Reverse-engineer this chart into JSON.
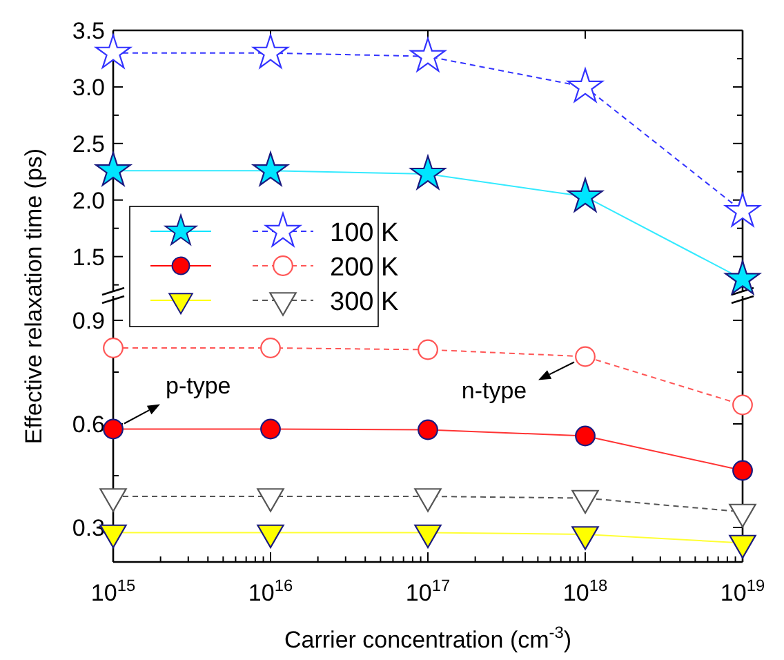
{
  "chart_data": [
    {
      "type": "line",
      "ylabel": "Effective relaxation time (ps)",
      "legend": "bottom left",
      "tick_labels": "y",
      "marker": "star",
      "xlim": [
        1000000000000000.0,
        1e+19
      ],
      "log": "x",
      "ylim": [
        1.15,
        3.5
      ],
      "xticks": [
        {
          "value": 1000000000000000.0,
          "label": null
        },
        {
          "value": 1e+16,
          "label": null
        },
        {
          "value": 1e+17,
          "label": null
        },
        {
          "value": 1e+18,
          "label": null
        },
        {
          "value": 1e+19,
          "label": null
        }
      ],
      "yticks": [
        {
          "value": 1.25,
          "label": null
        },
        1.5,
        {
          "value": 1.75,
          "label": null
        },
        {
          "value": 2,
          "label": "2.0"
        },
        {
          "value": 2.25,
          "label": null
        },
        2.5,
        {
          "value": 2.75,
          "label": null
        },
        {
          "value": 3,
          "label": "3.0"
        },
        {
          "value": 3.25,
          "label": null
        },
        3.5
      ],
      "x": [
        1000000000000000.0,
        1e+16,
        1e+17,
        1e+18,
        1e+19
      ],
      "series": [
        {
          "color": "#00e5ff",
          "line_style": "solid",
          "values": [
            2.26,
            2.26,
            2.23,
            2.03,
            1.3
          ]
        },
        {
          "name": "100 K",
          "color": "#3333ff",
          "line_style": "dashed",
          "values": [
            3.3,
            3.3,
            3.27,
            3.0,
            1.9
          ]
        }
      ]
    },
    {
      "type": "line",
      "xlabel": "Carrier concentration (cm$^{-3}$)",
      "log": "x",
      "legend": "top left",
      "xlim": [
        1000000000000000.0,
        1e+19
      ],
      "ylim": [
        0.2,
        0.97
      ],
      "xticks": [
        {
          "value": 1000000000000000.0,
          "label": "10$^{15}$"
        },
        {
          "value": 2000000000000000.0,
          "label": null
        },
        {
          "value": 3000000000000000.0,
          "label": null
        },
        {
          "value": 4000000000000000.0,
          "label": null
        },
        {
          "value": 5000000000000000.0,
          "label": null
        },
        {
          "value": 6000000000000000.0,
          "label": null
        },
        {
          "value": 7000000000000000.0,
          "label": null
        },
        {
          "value": 8000000000000000.0,
          "label": null
        },
        {
          "value": 9000000000000000.0,
          "label": null
        },
        {
          "value": 1e+16,
          "label": "10$^{16}$"
        },
        {
          "value": 2e+16,
          "label": null
        },
        {
          "value": 3e+16,
          "label": null
        },
        {
          "value": 4e+16,
          "label": null
        },
        {
          "value": 5e+16,
          "label": null
        },
        {
          "value": 6e+16,
          "label": null
        },
        {
          "value": 7e+16,
          "label": null
        },
        {
          "value": 8e+16,
          "label": null
        },
        {
          "value": 9e+16,
          "label": null
        },
        {
          "value": 1e+17,
          "label": "10$^{17}$"
        },
        {
          "value": 2e+17,
          "label": null
        },
        {
          "value": 3e+17,
          "label": null
        },
        {
          "value": 4e+17,
          "label": null
        },
        {
          "value": 5e+17,
          "label": null
        },
        {
          "value": 6e+17,
          "label": null
        },
        {
          "value": 7e+17,
          "label": null
        },
        {
          "value": 8e+17,
          "label": null
        },
        {
          "value": 9e+17,
          "label": null
        },
        {
          "value": 1e+18,
          "label": "10$^{18}$"
        },
        {
          "value": 2e+18,
          "label": null
        },
        {
          "value": 3e+18,
          "label": null
        },
        {
          "value": 4e+18,
          "label": null
        },
        {
          "value": 5e+18,
          "label": null
        },
        {
          "value": 6e+18,
          "label": null
        },
        {
          "value": 7e+18,
          "label": null
        },
        {
          "value": 8e+18,
          "label": null
        },
        {
          "value": 9e+18,
          "label": null
        },
        {
          "value": 1e+19,
          "label": "10$^{19}$"
        }
      ],
      "yticks": [
        0.3,
        {
          "value": 0.45,
          "label": null
        },
        0.6,
        {
          "value": 0.75,
          "label": null
        },
        0.9
      ],
      "x": [
        1000000000000000.0,
        1e+16,
        1e+17,
        1e+18,
        1e+19
      ],
      "series": [
        {
          "color": "#ff0000",
          "marker": "circle",
          "line_style": "solid",
          "values": [
            0.585,
            0.585,
            0.583,
            0.565,
            0.465
          ]
        },
        {
          "name": "200 K",
          "color": "#ff5555",
          "marker": "circle",
          "line_style": "dashed",
          "values": [
            0.82,
            0.82,
            0.815,
            0.795,
            0.655
          ]
        },
        {
          "color": "#ffff00",
          "marker": "triangle",
          "line_style": "solid",
          "values": [
            0.285,
            0.285,
            0.285,
            0.28,
            0.255
          ]
        },
        {
          "name": "300 K",
          "color": "#555555",
          "marker": "triangle",
          "line_style": "dashed",
          "values": [
            0.39,
            0.39,
            0.39,
            0.385,
            0.345
          ]
        }
      ],
      "annotations": [
        {
          "text": "p-type",
          "x": 1000000000000000.0,
          "y": 0.585
        },
        {
          "text": "n-type",
          "x": 1e+18,
          "y": 0.795
        }
      ]
    }
  ]
}
